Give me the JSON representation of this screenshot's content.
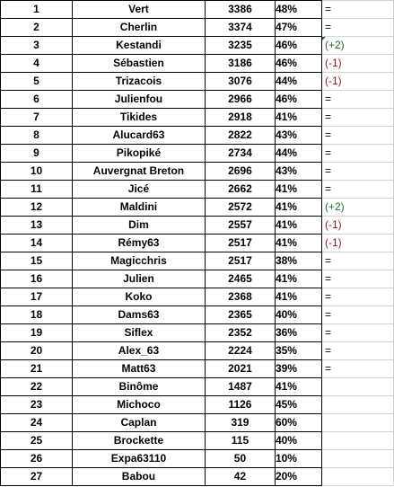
{
  "rows": [
    {
      "rank": "1",
      "name": "Vert",
      "score": "3386",
      "pct": "48%",
      "change": "="
    },
    {
      "rank": "2",
      "name": "Cherlin",
      "score": "3374",
      "pct": "47%",
      "change": "="
    },
    {
      "rank": "3",
      "name": "Kestandi",
      "score": "3235",
      "pct": "46%",
      "change": "(+2)"
    },
    {
      "rank": "4",
      "name": "Sébastien",
      "score": "3186",
      "pct": "46%",
      "change": "(-1)"
    },
    {
      "rank": "5",
      "name": "Trizacois",
      "score": "3076",
      "pct": "44%",
      "change": "(-1)"
    },
    {
      "rank": "6",
      "name": "Julienfou",
      "score": "2966",
      "pct": "46%",
      "change": "="
    },
    {
      "rank": "7",
      "name": "Tikides",
      "score": "2918",
      "pct": "41%",
      "change": "="
    },
    {
      "rank": "8",
      "name": "Alucard63",
      "score": "2822",
      "pct": "43%",
      "change": "="
    },
    {
      "rank": "9",
      "name": "Pikopiké",
      "score": "2734",
      "pct": "44%",
      "change": "="
    },
    {
      "rank": "10",
      "name": "Auvergnat Breton",
      "score": "2696",
      "pct": "43%",
      "change": "="
    },
    {
      "rank": "11",
      "name": "Jicé",
      "score": "2662",
      "pct": "41%",
      "change": "="
    },
    {
      "rank": "12",
      "name": "Maldini",
      "score": "2572",
      "pct": "41%",
      "change": "(+2)"
    },
    {
      "rank": "13",
      "name": "Dim",
      "score": "2557",
      "pct": "41%",
      "change": "(-1)"
    },
    {
      "rank": "14",
      "name": "Rémy63",
      "score": "2517",
      "pct": "41%",
      "change": "(-1)"
    },
    {
      "rank": "15",
      "name": "Magicchris",
      "score": "2517",
      "pct": "38%",
      "change": "="
    },
    {
      "rank": "16",
      "name": "Julien",
      "score": "2465",
      "pct": "41%",
      "change": "="
    },
    {
      "rank": "17",
      "name": "Koko",
      "score": "2368",
      "pct": "41%",
      "change": "="
    },
    {
      "rank": "18",
      "name": "Dams63",
      "score": "2365",
      "pct": "40%",
      "change": "="
    },
    {
      "rank": "19",
      "name": "Siflex",
      "score": "2352",
      "pct": "36%",
      "change": "="
    },
    {
      "rank": "20",
      "name": "Alex_63",
      "score": "2224",
      "pct": "35%",
      "change": "="
    },
    {
      "rank": "21",
      "name": "Matt63",
      "score": "2021",
      "pct": "39%",
      "change": "="
    },
    {
      "rank": "22",
      "name": "Binôme",
      "score": "1487",
      "pct": "41%",
      "change": ""
    },
    {
      "rank": "23",
      "name": "Michoco",
      "score": "1126",
      "pct": "45%",
      "change": ""
    },
    {
      "rank": "24",
      "name": "Caplan",
      "score": "319",
      "pct": "60%",
      "change": ""
    },
    {
      "rank": "25",
      "name": "Brockette",
      "score": "115",
      "pct": "40%",
      "change": ""
    },
    {
      "rank": "26",
      "name": "Expa63110",
      "score": "50",
      "pct": "10%",
      "change": ""
    },
    {
      "rank": "27",
      "name": "Babou",
      "score": "42",
      "pct": "20%",
      "change": ""
    }
  ],
  "colors": {
    "up": "#1e6e28",
    "down": "#8b1a1a",
    "comment_marker": "#1e7a2c"
  },
  "comment_marker_row": "3"
}
